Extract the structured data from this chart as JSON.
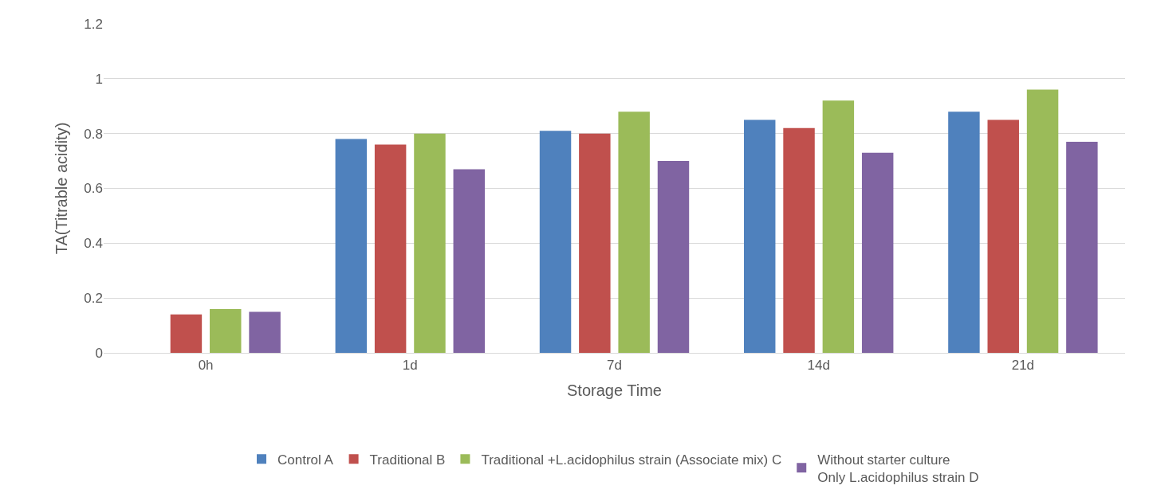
{
  "chart_data": {
    "type": "bar",
    "xlabel": "Storage Time",
    "ylabel": "TA(Titrable acidity)",
    "categories": [
      "0h",
      "1d",
      "7d",
      "14d",
      "21d"
    ],
    "series": [
      {
        "name": "Control A",
        "color": "#4f81bd",
        "values": [
          0,
          0.78,
          0.81,
          0.85,
          0.88
        ]
      },
      {
        "name": "Traditional B",
        "color": "#c0504d",
        "values": [
          0.14,
          0.76,
          0.8,
          0.82,
          0.85
        ]
      },
      {
        "name": "Traditional +L.acidophilus strain (Associate mix) C",
        "color": "#9bbb59",
        "values": [
          0.16,
          0.8,
          0.88,
          0.92,
          0.96
        ]
      },
      {
        "name": "Without starter culture\nOnly L.acidophilus strain D",
        "color": "#8064a2",
        "values": [
          0.15,
          0.67,
          0.7,
          0.73,
          0.77
        ]
      }
    ],
    "ylim": [
      0,
      1.2
    ],
    "yticks": [
      0,
      0.2,
      0.4,
      0.6,
      0.8,
      1,
      1.2
    ],
    "grid": "y",
    "legend": "bottom"
  }
}
